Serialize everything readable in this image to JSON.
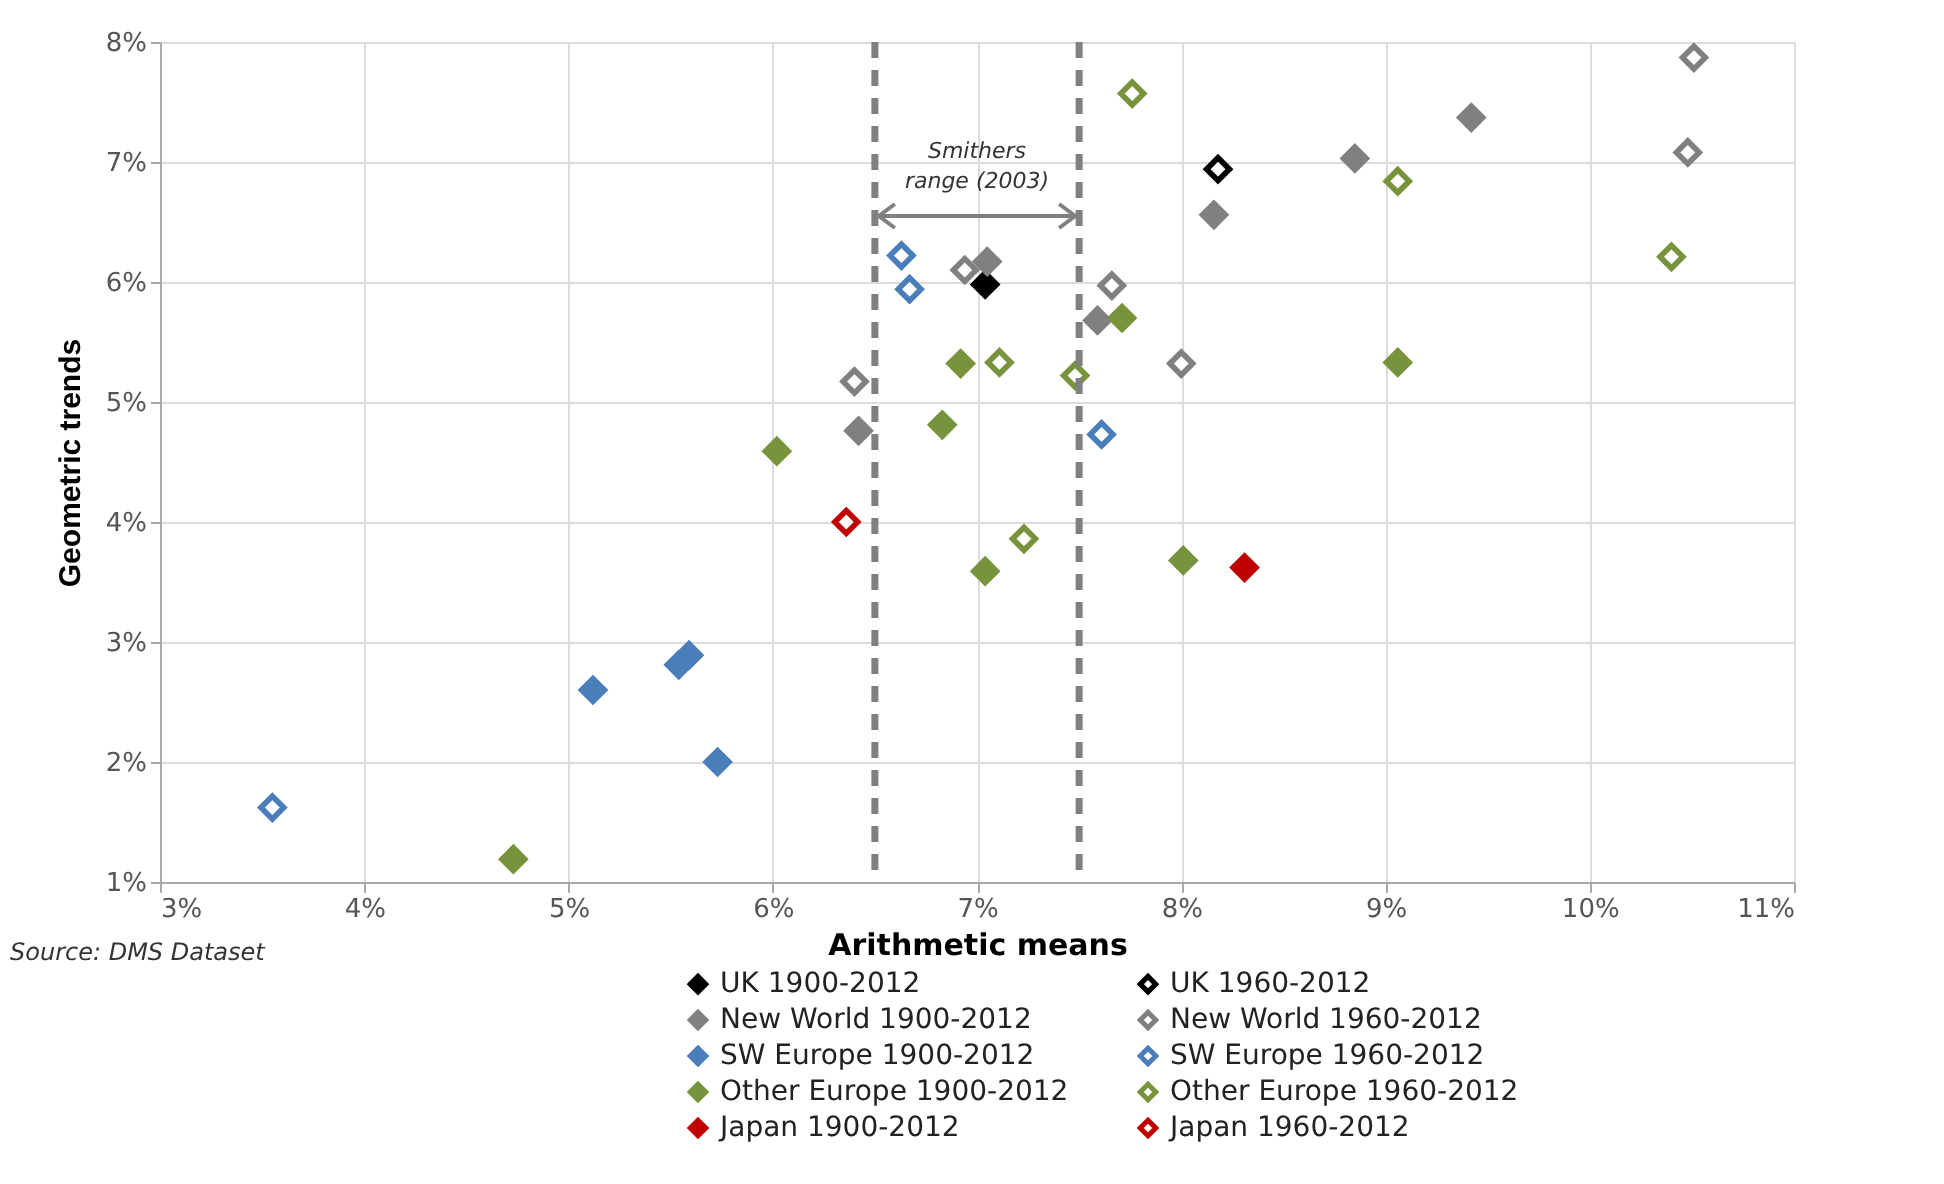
{
  "chart_data": {
    "type": "scatter",
    "xlabel": "Arithmetic means",
    "ylabel": "Geometric trends",
    "xlim": [
      3,
      11
    ],
    "ylim": [
      1,
      8
    ],
    "xticks": [
      {
        "value": 3,
        "label": "3%"
      },
      {
        "value": 4,
        "label": "4%"
      },
      {
        "value": 5,
        "label": "5%"
      },
      {
        "value": 6,
        "label": "6%"
      },
      {
        "value": 7,
        "label": "7%"
      },
      {
        "value": 8,
        "label": "8%"
      },
      {
        "value": 9,
        "label": "9%"
      },
      {
        "value": 10,
        "label": "10%"
      },
      {
        "value": 11,
        "label": "11%"
      }
    ],
    "yticks": [
      {
        "value": 1,
        "label": "1%"
      },
      {
        "value": 2,
        "label": "2%"
      },
      {
        "value": 3,
        "label": "3%"
      },
      {
        "value": 4,
        "label": "4%"
      },
      {
        "value": 5,
        "label": "5%"
      },
      {
        "value": 6,
        "label": "6%"
      },
      {
        "value": 7,
        "label": "7%"
      },
      {
        "value": 8,
        "label": "8%"
      }
    ],
    "grid": true,
    "legend": "bottom",
    "marker": "diamond",
    "series": [
      {
        "name": "UK 1900-2012",
        "color": "#000000",
        "x": [
          7.04
        ],
        "values": [
          5.98
        ]
      },
      {
        "name": "UK 1960-2012",
        "color": "#000000",
        "x": [
          8.18
        ],
        "values": [
          6.94
        ]
      },
      {
        "name": "New World 1900-2012",
        "color": "#808080",
        "x": [
          6.42,
          7.05,
          8.16,
          8.85,
          9.42,
          7.59
        ],
        "values": [
          4.76,
          6.17,
          6.56,
          7.03,
          7.37,
          5.68
        ]
      },
      {
        "name": "New World 1960-2012",
        "color": "#808080",
        "x": [
          6.4,
          6.94,
          10.51,
          10.48,
          7.66,
          8.0
        ],
        "values": [
          5.17,
          6.1,
          7.87,
          7.08,
          5.97,
          5.32
        ]
      },
      {
        "name": "SW Europe 1900-2012",
        "color": "#4a7ebb",
        "x": [
          5.12,
          5.54,
          5.59,
          5.73
        ],
        "values": [
          2.6,
          2.81,
          2.89,
          2.0
        ]
      },
      {
        "name": "SW Europe 1960-2012",
        "color": "#4a7ebb",
        "x": [
          6.63,
          6.67,
          7.61,
          3.55
        ],
        "values": [
          6.22,
          5.94,
          4.73,
          1.62
        ]
      },
      {
        "name": "Other Europe 1900-2012",
        "color": "#77933c",
        "x": [
          6.02,
          6.83,
          6.92,
          7.71,
          9.06,
          7.04,
          8.01,
          4.73
        ],
        "values": [
          4.59,
          4.81,
          5.32,
          5.7,
          5.33,
          3.59,
          3.68,
          1.19
        ]
      },
      {
        "name": "Other Europe 1960-2012",
        "color": "#77933c",
        "x": [
          7.76,
          9.06,
          10.4,
          7.11,
          7.48,
          7.23
        ],
        "values": [
          7.57,
          6.84,
          6.21,
          5.33,
          5.22,
          3.86
        ]
      },
      {
        "name": "Japan 1900-2012",
        "color": "#c00000",
        "x": [
          8.31
        ],
        "values": [
          3.62
        ]
      },
      {
        "name": "Japan 1960-2012",
        "color": "#c00000",
        "x": [
          6.36
        ],
        "values": [
          4.0
        ]
      }
    ],
    "ref_lines": [
      {
        "axis": "x",
        "value": 6.5,
        "color": "#808080",
        "line_style": "dashed"
      },
      {
        "axis": "x",
        "value": 7.5,
        "color": "#808080",
        "line_style": "dashed"
      }
    ],
    "annotations": [
      {
        "text": "Smithers range (2003)",
        "x": 6.5,
        "y": 6.55
      },
      "Source: DMS Dataset"
    ]
  }
}
